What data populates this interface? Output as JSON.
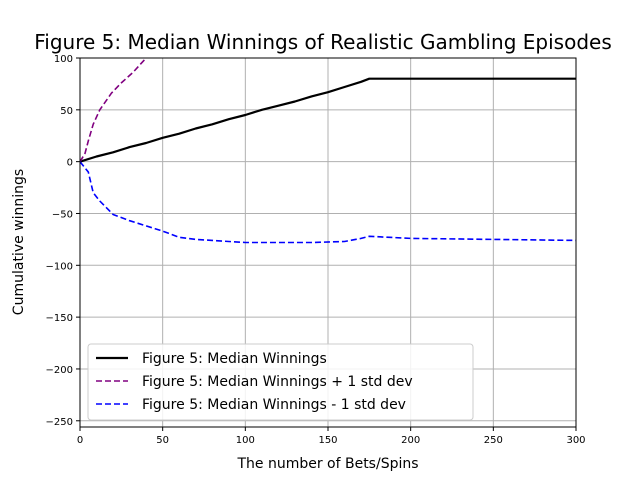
{
  "chart_data": {
    "type": "line",
    "title": "Figure 5: Median Winnings of Realistic Gambling Episodes",
    "xlabel": "The number of Bets/Spins",
    "ylabel": "Cumulative winnings",
    "xlim": [
      0,
      300
    ],
    "ylim": [
      -256,
      100
    ],
    "xticks": [
      0,
      50,
      100,
      150,
      200,
      250,
      300
    ],
    "yticks": [
      -250,
      -200,
      -150,
      -100,
      -50,
      0,
      50,
      100
    ],
    "grid": true,
    "legend_position": "lower-left",
    "series": [
      {
        "name": "Figure 5: Median Winnings",
        "color": "#000000",
        "style": "solid",
        "x": [
          0,
          10,
          20,
          30,
          40,
          50,
          60,
          70,
          80,
          90,
          100,
          110,
          120,
          130,
          140,
          150,
          160,
          170,
          175,
          200,
          250,
          300
        ],
        "y": [
          0,
          5,
          9,
          14,
          18,
          23,
          27,
          32,
          36,
          41,
          45,
          50,
          54,
          58,
          63,
          67,
          72,
          77,
          80,
          80,
          80,
          80
        ]
      },
      {
        "name": "Figure 5: Median Winnings + 1 std dev",
        "color": "#800080",
        "style": "dashed",
        "x": [
          0,
          3,
          5,
          8,
          12,
          19,
          25,
          32,
          40
        ],
        "y": [
          0,
          8,
          20,
          36,
          50,
          66,
          76,
          86,
          100
        ]
      },
      {
        "name": "Figure 5: Median Winnings - 1 std dev",
        "color": "#0000ff",
        "style": "dashed",
        "x": [
          0,
          5,
          8,
          12,
          20,
          30,
          40,
          50,
          60,
          70,
          80,
          90,
          100,
          120,
          140,
          160,
          170,
          175,
          200,
          250,
          300
        ],
        "y": [
          0,
          -10,
          -30,
          -38,
          -51,
          -57,
          -62,
          -67,
          -73,
          -75,
          -76,
          -77,
          -78,
          -78,
          -78,
          -77,
          -74,
          -72,
          -74,
          -75,
          -76
        ]
      }
    ]
  }
}
